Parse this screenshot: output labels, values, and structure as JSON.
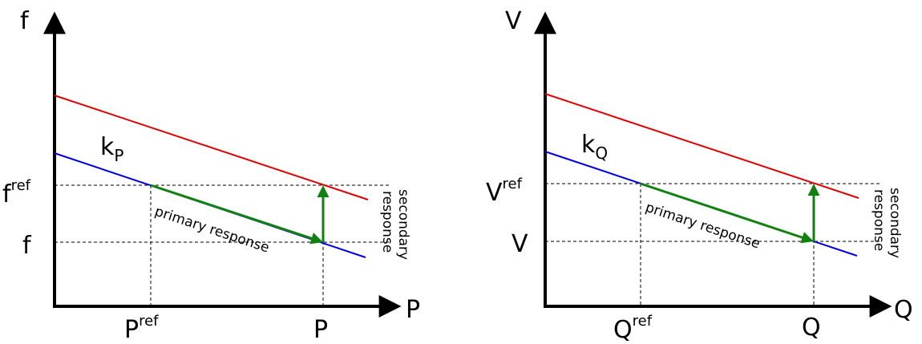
{
  "colors": {
    "upper_line": "#e00000",
    "lower_line": "#0000e0",
    "response_arrow": "#118011",
    "axis": "#000000"
  },
  "left_diagram": {
    "y_axis_label": "f",
    "x_axis_label": "P",
    "ref_y_main": "f",
    "ref_y_sup": "ref",
    "y_value_label": "f",
    "ref_x_main": "P",
    "ref_x_sup": "ref",
    "x_value_label": "P",
    "slope_main": "k",
    "slope_sub": "P",
    "primary_label": "primary response",
    "secondary_label_line1": "secondary",
    "secondary_label_line2": "response"
  },
  "right_diagram": {
    "y_axis_label": "V",
    "x_axis_label": "Q",
    "ref_y_main": "V",
    "ref_y_sup": "ref",
    "y_value_label": "V",
    "ref_x_main": "Q",
    "ref_x_sup": "ref",
    "x_value_label": "Q",
    "slope_main": "k",
    "slope_sub": "Q",
    "primary_label": "primary response",
    "secondary_label_line1": "secondary",
    "secondary_label_line2": "response"
  }
}
